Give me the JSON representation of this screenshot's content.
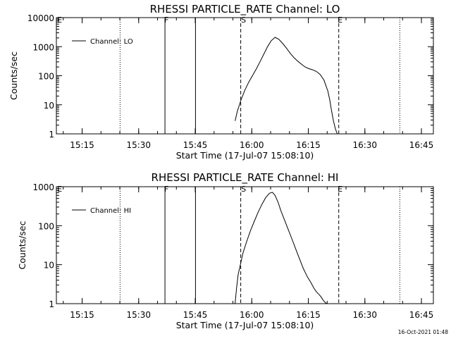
{
  "footer": "16-Oct-2021 01:48",
  "chart_data": [
    {
      "type": "line",
      "title": "RHESSI PARTICLE_RATE Channel: LO",
      "xlabel": "Start Time (17-Jul-07 15:08:10)",
      "ylabel": "Counts/sec",
      "x_unit": "minutes since 15:08:10",
      "xlim": [
        0,
        100
      ],
      "ylim": [
        1,
        10000
      ],
      "yscale": "log",
      "xtick_labels": [
        "15:15",
        "15:30",
        "15:45",
        "16:00",
        "16:15",
        "16:30",
        "16:45"
      ],
      "xtick_values": [
        6.83,
        21.83,
        36.83,
        51.83,
        66.83,
        81.83,
        96.83
      ],
      "ytick_labels": [
        "1",
        "10",
        "100",
        "1000",
        "10000"
      ],
      "ytick_values": [
        1,
        10,
        100,
        1000,
        10000
      ],
      "legend": [
        "Channel: LO"
      ],
      "legend_position": "top-left",
      "grid": false,
      "markers": {
        "solid": [
          28.8,
          36.9
        ],
        "dashed": [
          48.9,
          74.9
        ],
        "dotted": [
          16.9,
          91.1
        ],
        "labels": [
          {
            "text": "E",
            "x": 0.2
          },
          {
            "text": "F",
            "x": 28.6
          },
          {
            "text": "S",
            "x": 49.0
          },
          {
            "text": "E",
            "x": 74.6
          }
        ]
      },
      "series": [
        {
          "name": "Channel: LO",
          "x": [
            47.4,
            48.0,
            49.0,
            50.0,
            51.0,
            52.0,
            53.0,
            54.0,
            55.0,
            56.0,
            57.0,
            58.0,
            59.0,
            60.0,
            61.0,
            62.0,
            63.0,
            64.0,
            65.0,
            66.0,
            67.0,
            68.0,
            69.0,
            70.0,
            71.0,
            72.0,
            72.5,
            73.0,
            73.5,
            74.0,
            74.5
          ],
          "y": [
            2.8,
            6.0,
            15.0,
            32.0,
            60.0,
            100.0,
            170.0,
            300.0,
            550.0,
            1000.0,
            1600.0,
            2100.0,
            1800.0,
            1300.0,
            900.0,
            600.0,
            420.0,
            320.0,
            250.0,
            200.0,
            175.0,
            160.0,
            140.0,
            110.0,
            70.0,
            30.0,
            15.0,
            6.0,
            2.8,
            1.5,
            1.0
          ]
        }
      ]
    },
    {
      "type": "line",
      "title": "RHESSI PARTICLE_RATE Channel: HI",
      "xlabel": "Start Time (17-Jul-07 15:08:10)",
      "ylabel": "Counts/sec",
      "x_unit": "minutes since 15:08:10",
      "xlim": [
        0,
        100
      ],
      "ylim": [
        1,
        1000
      ],
      "yscale": "log",
      "xtick_labels": [
        "15:15",
        "15:30",
        "15:45",
        "16:00",
        "16:15",
        "16:30",
        "16:45"
      ],
      "xtick_values": [
        6.83,
        21.83,
        36.83,
        51.83,
        66.83,
        81.83,
        96.83
      ],
      "ytick_labels": [
        "1",
        "10",
        "100",
        "1000"
      ],
      "ytick_values": [
        1,
        10,
        100,
        1000
      ],
      "legend": [
        "Channel: HI"
      ],
      "legend_position": "top-left",
      "grid": false,
      "markers": {
        "solid": [
          28.8,
          36.9
        ],
        "dashed": [
          48.9,
          74.9
        ],
        "dotted": [
          16.9,
          91.1
        ],
        "labels": [
          {
            "text": "E",
            "x": 0.2
          },
          {
            "text": "F",
            "x": 28.6
          },
          {
            "text": "S",
            "x": 49.0
          },
          {
            "text": "E",
            "x": 74.6
          }
        ]
      },
      "series": [
        {
          "name": "Channel: HI",
          "x": [
            47.4,
            47.8,
            48.2,
            48.8,
            49.5,
            50.5,
            51.5,
            52.5,
            53.5,
            54.5,
            55.5,
            56.5,
            57.3,
            58.0,
            58.8,
            59.5,
            60.5,
            61.5,
            62.5,
            63.5,
            64.5,
            65.5,
            66.5,
            67.5,
            68.3,
            69.0,
            69.7,
            70.2,
            70.6,
            71.0,
            71.4,
            71.8
          ],
          "y": [
            1.0,
            2.5,
            5.5,
            10.0,
            20.0,
            40.0,
            75.0,
            130.0,
            220.0,
            350.0,
            520.0,
            680.0,
            720.0,
            600.0,
            400.0,
            250.0,
            140.0,
            80.0,
            45.0,
            25.0,
            14.0,
            8.0,
            5.0,
            3.5,
            2.5,
            2.0,
            1.7,
            1.5,
            1.3,
            1.15,
            1.05,
            1.0
          ]
        }
      ]
    }
  ]
}
